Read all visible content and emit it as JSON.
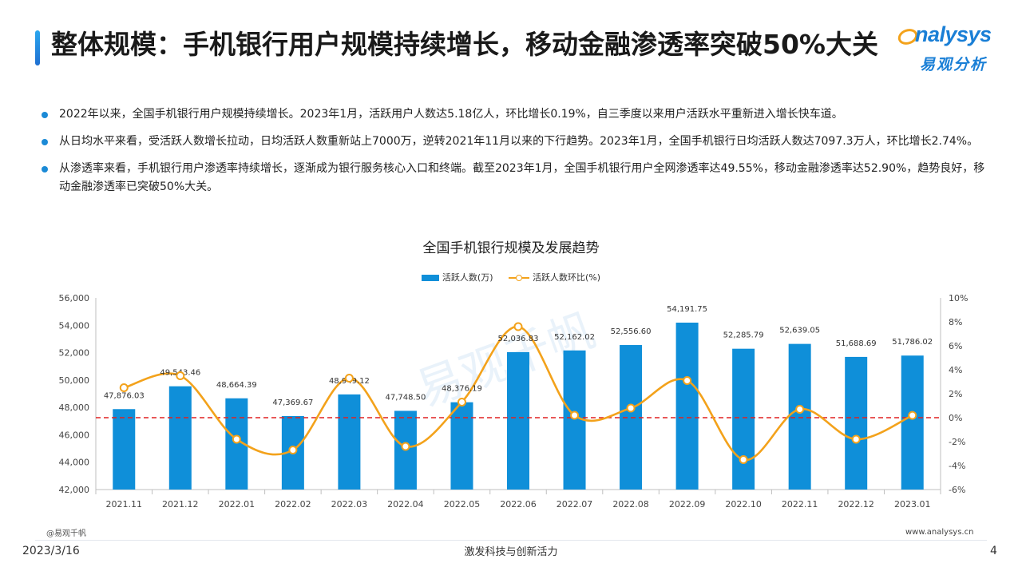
{
  "header": {
    "title": "整体规模：手机银行用户规模持续增长，移动金融渗透率突破50%大关",
    "logo_en": "nalysys",
    "logo_cn": "易观分析"
  },
  "bullets": [
    "2022年以来，全国手机银行用户规模持续增长。2023年1月，活跃用户人数达5.18亿人，环比增长0.19%，自三季度以来用户活跃水平重新进入增长快车道。",
    "从日均水平来看，受活跃人数增长拉动，日均活跃人数重新站上7000万，逆转2021年11月以来的下行趋势。2023年1月，全国手机银行日均活跃人数达7097.3万人，环比增长2.74%。",
    "从渗透率来看，手机银行用户渗透率持续增长，逐渐成为银行服务核心入口和终端。截至2023年1月，全国手机银行用户全网渗透率达49.55%，移动金融渗透率达52.90%，趋势良好，移动金融渗透率已突破50%大关。"
  ],
  "chart_data": {
    "type": "bar",
    "title": "全国手机银行规模及发展趋势",
    "categories": [
      "2021.11",
      "2021.12",
      "2022.01",
      "2022.02",
      "2022.03",
      "2022.04",
      "2022.05",
      "2022.06",
      "2022.07",
      "2022.08",
      "2022.09",
      "2022.10",
      "2022.11",
      "2022.12",
      "2023.01"
    ],
    "series": [
      {
        "name": "活跃人数(万)",
        "type": "bar",
        "axis": "left",
        "values": [
          47876.03,
          49543.46,
          48664.39,
          47369.67,
          48949.12,
          47748.5,
          48376.19,
          52036.83,
          52162.02,
          52556.6,
          54191.75,
          52285.79,
          52639.05,
          51688.69,
          51786.02
        ],
        "labels": [
          "47,876.03",
          "49,543.46",
          "48,664.39",
          "47,369.67",
          "48,949.12",
          "47,748.50",
          "48,376.19",
          "52,036.83",
          "52,162.02",
          "52,556.60",
          "54,191.75",
          "52,285.79",
          "52,639.05",
          "51,688.69",
          "51,786.02"
        ],
        "color": "#0f8fd9"
      },
      {
        "name": "活跃人数环比(%)",
        "type": "line",
        "axis": "right",
        "smooth": true,
        "values": [
          2.5,
          3.5,
          -1.8,
          -2.7,
          3.3,
          -2.4,
          1.3,
          7.6,
          0.2,
          0.8,
          3.1,
          -3.5,
          0.7,
          -1.8,
          0.19
        ],
        "color": "#f3a21b"
      }
    ],
    "y_left": {
      "min": 42000,
      "max": 56000,
      "ticks": [
        "42,000",
        "44,000",
        "46,000",
        "48,000",
        "50,000",
        "52,000",
        "54,000",
        "56,000"
      ]
    },
    "y_right": {
      "min": -6,
      "max": 10,
      "ticks": [
        "-6%",
        "-4%",
        "-2%",
        "0%",
        "2%",
        "4%",
        "6%",
        "8%",
        "10%"
      ]
    },
    "reference_line": {
      "axis": "right",
      "value": 0,
      "style": "dashed",
      "color": "#e02020"
    },
    "legend_position": "top-center",
    "grid": false
  },
  "watermark": "易观千帆",
  "footer": {
    "tag": "@易观千帆",
    "url": "www.analysys.cn",
    "date": "2023/3/16",
    "slogan": "激发科技与创新活力",
    "page": "4"
  }
}
